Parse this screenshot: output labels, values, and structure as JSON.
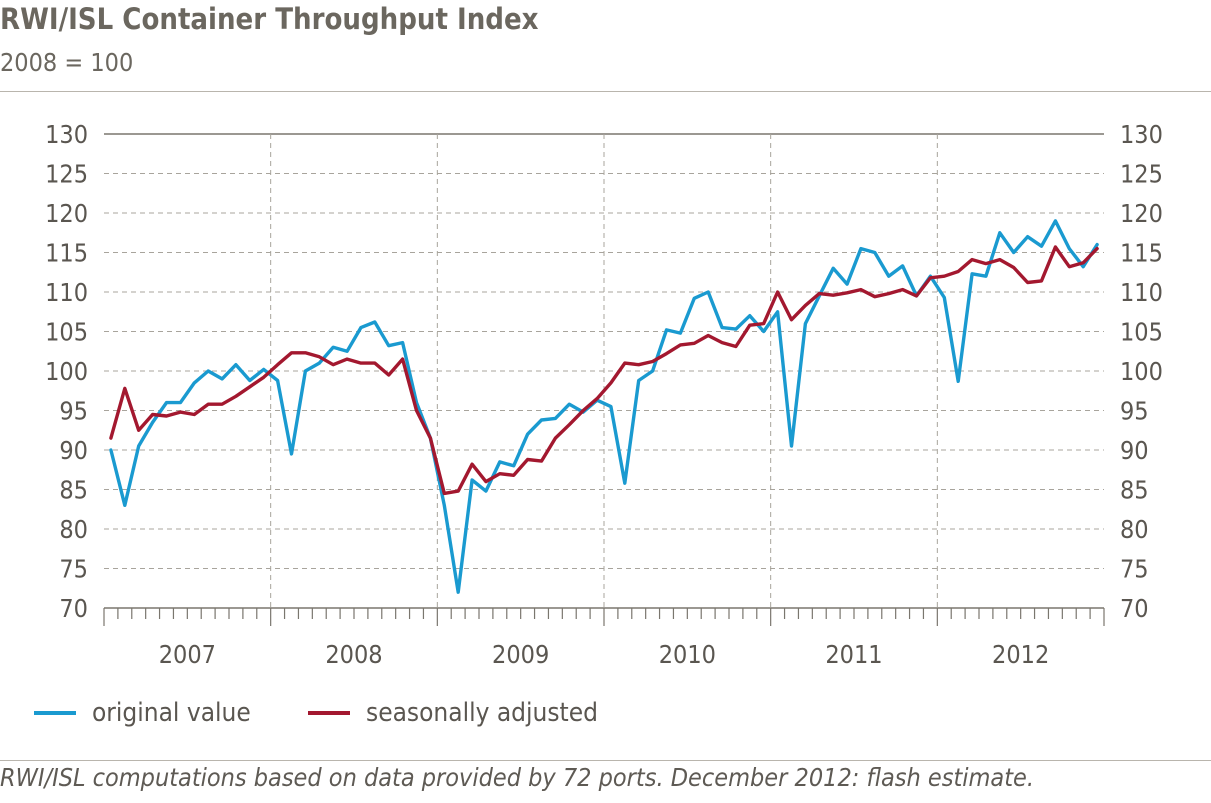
{
  "header": {
    "title": "RWI/ISL Container Throughput Index",
    "subtitle": "2008 = 100"
  },
  "footer": {
    "source": "RWI/ISL computations based on data provided by 72 ports. December 2012: flash estimate."
  },
  "legend": {
    "items": [
      {
        "label": "original value",
        "color": "#1a9ad0"
      },
      {
        "label": "seasonally adjusted",
        "color": "#a3182f"
      }
    ]
  },
  "chart_data": {
    "type": "line",
    "title": "RWI/ISL Container Throughput Index",
    "subtitle": "2008 = 100",
    "xlabel": "",
    "ylabel": "",
    "ylim": [
      70,
      130
    ],
    "yticks": [
      70,
      75,
      80,
      85,
      90,
      95,
      100,
      105,
      110,
      115,
      120,
      125,
      130
    ],
    "year_labels": [
      "2007",
      "2008",
      "2009",
      "2010",
      "2011",
      "2012"
    ],
    "x_frequency": "monthly, Jan 2007 – Dec 2012",
    "grid": true,
    "right_axis_mirror": true,
    "legend_position": "bottom-left",
    "series": [
      {
        "name": "original value",
        "color": "#1a9ad0",
        "values": [
          90,
          83,
          90.5,
          93.5,
          96,
          96,
          98.5,
          100,
          99,
          100.8,
          98.8,
          100.2,
          98.8,
          89.5,
          100,
          101,
          103,
          102.5,
          105.5,
          106.2,
          103.2,
          103.6,
          96,
          91.5,
          83,
          72,
          86.2,
          84.8,
          88.5,
          88,
          92,
          93.8,
          94,
          95.8,
          94.8,
          96.3,
          95.5,
          85.8,
          98.8,
          100,
          105.2,
          104.8,
          109.2,
          110,
          105.5,
          105.3,
          107,
          105,
          107.5,
          90.5,
          106,
          109.5,
          113,
          111,
          115.5,
          115,
          112,
          113.3,
          109.5,
          112,
          109.3,
          98.7,
          112.3,
          112,
          117.5,
          115,
          117,
          115.8,
          119,
          115.5,
          113.2,
          116
        ]
      },
      {
        "name": "seasonally adjusted",
        "color": "#a3182f",
        "values": [
          91.5,
          97.8,
          92.5,
          94.5,
          94.3,
          94.8,
          94.5,
          95.8,
          95.8,
          96.8,
          98,
          99.2,
          100.8,
          102.3,
          102.3,
          101.8,
          100.8,
          101.5,
          101,
          101,
          99.5,
          101.5,
          95,
          91.5,
          84.5,
          84.8,
          88.2,
          86,
          87,
          86.8,
          88.8,
          88.6,
          91.5,
          93.2,
          95,
          96.5,
          98.5,
          101,
          100.8,
          101.2,
          102.2,
          103.3,
          103.5,
          104.5,
          103.6,
          103.1,
          105.8,
          106,
          110,
          106.5,
          108.3,
          109.8,
          109.6,
          109.9,
          110.3,
          109.4,
          109.8,
          110.3,
          109.5,
          111.8,
          112,
          112.6,
          114.1,
          113.6,
          114.1,
          113.1,
          111.2,
          111.4,
          115.7,
          113.2,
          113.7,
          115.5
        ]
      }
    ]
  }
}
